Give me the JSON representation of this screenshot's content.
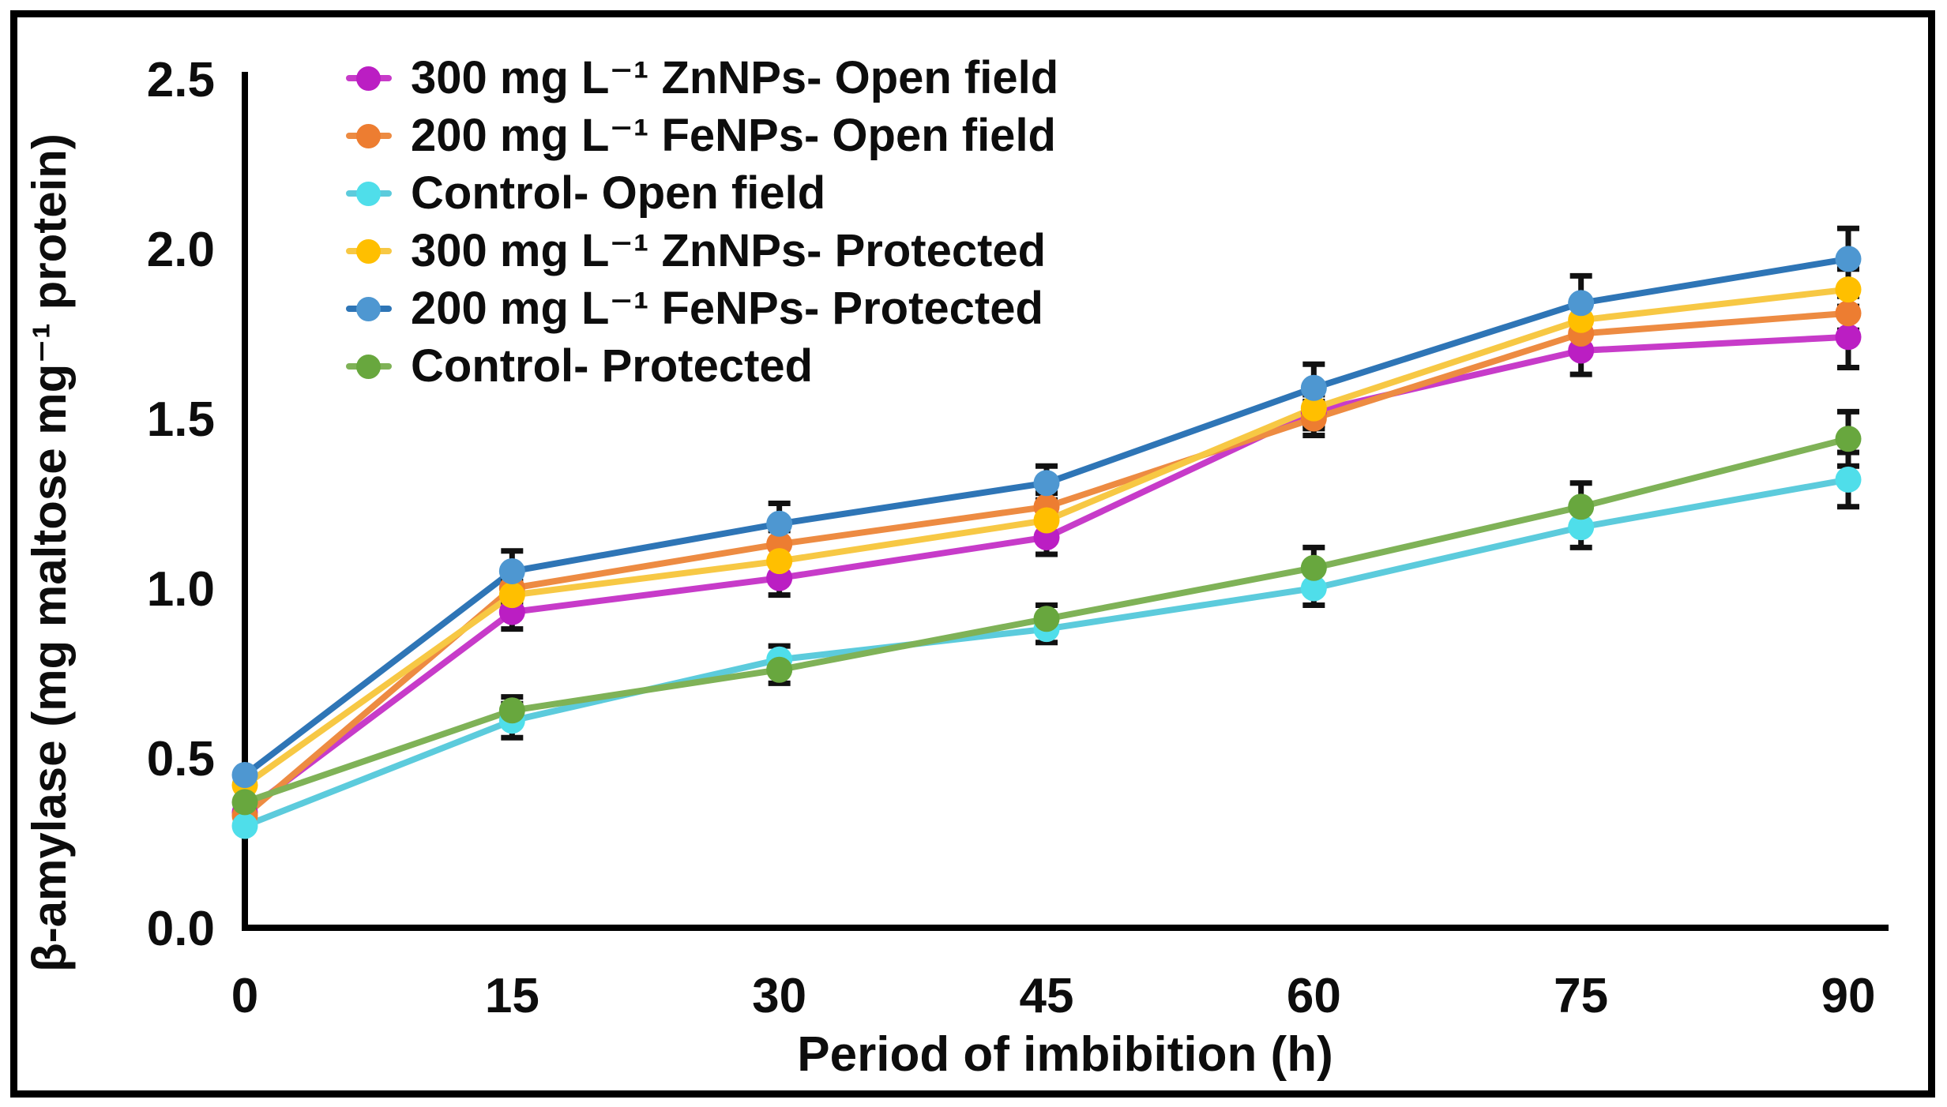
{
  "chart_data": {
    "type": "line",
    "title": "",
    "xlabel": "Period of imbibition (h)",
    "ylabel": "β-amylase (mg maltose mg⁻¹ protein)",
    "x": [
      0,
      15,
      30,
      45,
      60,
      75,
      90
    ],
    "xtick_labels": [
      "0",
      "15",
      "30",
      "45",
      "60",
      "75",
      "90"
    ],
    "ytick_labels": [
      "0.0",
      "0.5",
      "1.0",
      "1.5",
      "2.0",
      "2.5"
    ],
    "ylim": [
      0,
      2.5
    ],
    "grid": false,
    "legend_position": "top-left-inside",
    "error_bars": true,
    "marker": "circle",
    "axis_color": "#000000",
    "text_color": "#0d0d0d",
    "series": [
      {
        "name": "300 mg L⁻¹ ZnNPs- Open field",
        "color": "#C73BC9",
        "marker_color": "#BB1EC3",
        "values": [
          0.34,
          0.93,
          1.03,
          1.15,
          1.52,
          1.7,
          1.74
        ],
        "errors": [
          0,
          0.05,
          0.05,
          0.05,
          0.05,
          0.07,
          0.09
        ]
      },
      {
        "name": "200 mg L⁻¹ FeNPs- Open field",
        "color": "#ED8B42",
        "marker_color": "#ED7D31",
        "values": [
          0.33,
          1.0,
          1.13,
          1.24,
          1.5,
          1.75,
          1.81
        ],
        "errors": [
          0,
          0.04,
          0.04,
          0.04,
          0.05,
          0.05,
          0.05
        ]
      },
      {
        "name": "Control- Open field",
        "color": "#5CCBDC",
        "marker_color": "#4FDEEA",
        "values": [
          0.3,
          0.61,
          0.79,
          0.88,
          1.0,
          1.18,
          1.32
        ],
        "errors": [
          0,
          0.05,
          0.04,
          0.04,
          0.05,
          0.06,
          0.08
        ]
      },
      {
        "name": "300 mg L⁻¹ ZnNPs- Protected",
        "color": "#F7C844",
        "marker_color": "#FFBF00",
        "values": [
          0.42,
          0.98,
          1.08,
          1.2,
          1.53,
          1.79,
          1.88
        ],
        "errors": [
          0,
          0.04,
          0.04,
          0.04,
          0.05,
          0.05,
          0.06
        ]
      },
      {
        "name": "200 mg L⁻¹ FeNPs- Protected",
        "color": "#2E75B6",
        "marker_color": "#4E97D1",
        "values": [
          0.45,
          1.05,
          1.19,
          1.31,
          1.59,
          1.84,
          1.97
        ],
        "errors": [
          0,
          0.06,
          0.06,
          0.05,
          0.07,
          0.08,
          0.09
        ]
      },
      {
        "name": "Control- Protected",
        "color": "#7FB257",
        "marker_color": "#68A73E",
        "values": [
          0.37,
          0.64,
          0.76,
          0.91,
          1.06,
          1.24,
          1.44
        ],
        "errors": [
          0,
          0.04,
          0.04,
          0.04,
          0.06,
          0.07,
          0.08
        ]
      }
    ]
  }
}
